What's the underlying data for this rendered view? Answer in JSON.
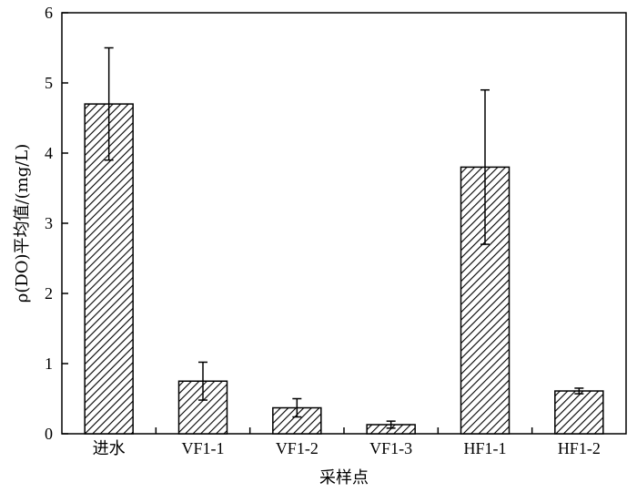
{
  "chart_data": {
    "type": "bar",
    "title": "",
    "xlabel": "采样点",
    "ylabel": "ρ(DO)平均值/(mg/L)",
    "categories": [
      "进水",
      "VF1-1",
      "VF1-2",
      "VF1-3",
      "HF1-1",
      "HF1-2"
    ],
    "values": [
      4.7,
      0.75,
      0.37,
      0.13,
      3.8,
      0.61
    ],
    "error_plus": [
      0.8,
      0.27,
      0.13,
      0.05,
      1.1,
      0.04
    ],
    "error_minus": [
      0.8,
      0.27,
      0.13,
      0.05,
      1.1,
      0.04
    ],
    "ylim": [
      0,
      6
    ],
    "yticks": [
      0,
      1,
      2,
      3,
      4,
      5,
      6
    ],
    "ytick_labels": [
      "0",
      "1",
      "2",
      "3",
      "4",
      "5",
      "6"
    ],
    "grid": false,
    "legend": "none",
    "bar_fill": "diagonal-hatch",
    "colors": {
      "stroke": "#000000",
      "background": "#ffffff"
    }
  }
}
